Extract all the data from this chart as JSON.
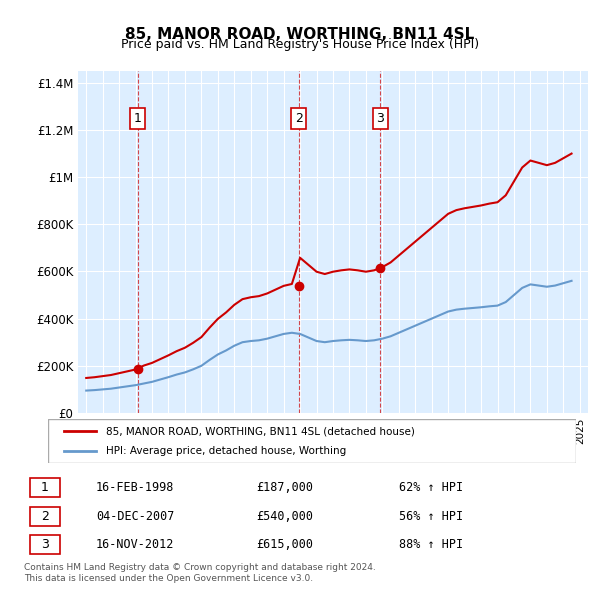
{
  "title": "85, MANOR ROAD, WORTHING, BN11 4SL",
  "subtitle": "Price paid vs. HM Land Registry's House Price Index (HPI)",
  "sale_points": [
    {
      "date_label": "16-FEB-1998",
      "year": 1998.12,
      "price": 187000,
      "num": "1"
    },
    {
      "date_label": "04-DEC-2007",
      "year": 2007.92,
      "price": 540000,
      "num": "2"
    },
    {
      "date_label": "16-NOV-2012",
      "year": 2012.88,
      "price": 615000,
      "num": "3"
    }
  ],
  "hpi_info": [
    {
      "num": "1",
      "date": "16-FEB-1998",
      "price": "£187,000",
      "change": "62% ↑ HPI"
    },
    {
      "num": "2",
      "date": "04-DEC-2007",
      "price": "£540,000",
      "change": "56% ↑ HPI"
    },
    {
      "num": "3",
      "date": "16-NOV-2012",
      "price": "£615,000",
      "change": "88% ↑ HPI"
    }
  ],
  "legend_property": "85, MANOR ROAD, WORTHING, BN11 4SL (detached house)",
  "legend_hpi": "HPI: Average price, detached house, Worthing",
  "footer": "Contains HM Land Registry data © Crown copyright and database right 2024.\nThis data is licensed under the Open Government Licence v3.0.",
  "red_color": "#cc0000",
  "blue_color": "#6699cc",
  "bg_color": "#ddeeff",
  "ylim": [
    0,
    1450000
  ],
  "xlim_start": 1994.5,
  "xlim_end": 2025.5
}
